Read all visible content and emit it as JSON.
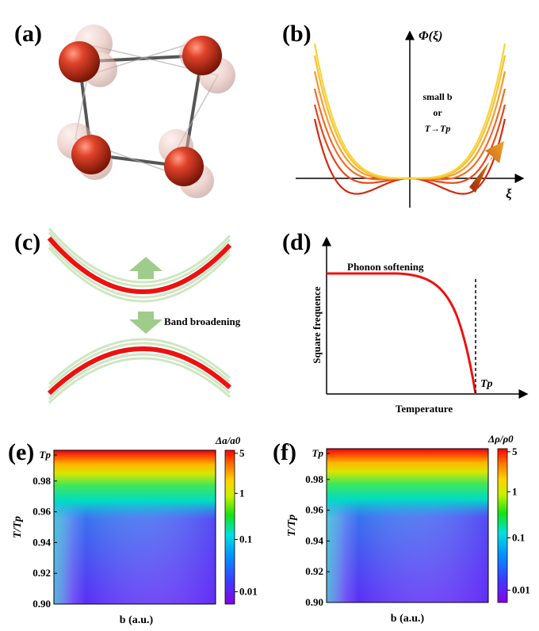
{
  "panels": {
    "a": {
      "label": "(a)"
    },
    "b": {
      "label": "(b)",
      "y_axis_label": "Φ(ξ)",
      "x_axis_label": "ξ",
      "annotation": {
        "line1": "small b",
        "line2": "or",
        "line3": "T→Tp"
      },
      "curve_colors": [
        "#d42a0f",
        "#e5491c",
        "#ee6d2a",
        "#f59a2d",
        "#f8c02f",
        "#f6d43a"
      ]
    },
    "c": {
      "label": "(c)",
      "annotation": "Band broadening",
      "arrow_color": "#9fcc8c",
      "band_color": "#ee1111"
    },
    "d": {
      "label": "(d)",
      "curve_label": "Phonon softening",
      "y_axis_label": "Square frequence",
      "x_axis_label": "Temperature",
      "marker_label": "Tp"
    },
    "e": {
      "label": "(e)",
      "colorbar_title": "Δa/a0",
      "colorbar_ticks": [
        "5",
        "1",
        "0.1",
        "0.01"
      ]
    },
    "f": {
      "label": "(f)",
      "colorbar_title": "Δρ/ρ0",
      "colorbar_ticks": [
        "5",
        "1",
        "0.1",
        "0.01"
      ]
    }
  },
  "heatmap_axes": {
    "y_axis_label": "T/Tp",
    "x_axis_label": "b (a.u.)",
    "y_tick_labels": [
      "Tp",
      "0.98",
      "0.96",
      "0.94",
      "0.92",
      "0.90"
    ]
  },
  "chart_data": [
    {
      "type": "line",
      "title": "",
      "xlabel": "ξ",
      "ylabel": "Φ(ξ)",
      "series": [],
      "note": "qualitative double-well potential curves"
    },
    {
      "type": "line",
      "title": "",
      "xlabel": "Temperature",
      "ylabel": "Square frequence",
      "series": [
        {
          "name": "Phonon softening"
        }
      ],
      "vline_label": "Tp"
    },
    {
      "type": "heatmap",
      "title": "",
      "xlabel": "b (a.u.)",
      "ylabel": "T/Tp",
      "ylim": [
        0.9,
        1.0
      ],
      "colorbar_label": "Δa/a0",
      "colorbar_ticks": [
        5,
        1,
        0.1,
        0.01
      ],
      "color_scale": "log"
    },
    {
      "type": "heatmap",
      "title": "",
      "xlabel": "b (a.u.)",
      "ylabel": "T/Tp",
      "ylim": [
        0.9,
        1.0
      ],
      "colorbar_label": "Δρ/ρ0",
      "colorbar_ticks": [
        5,
        1,
        0.1,
        0.01
      ],
      "color_scale": "log"
    }
  ]
}
